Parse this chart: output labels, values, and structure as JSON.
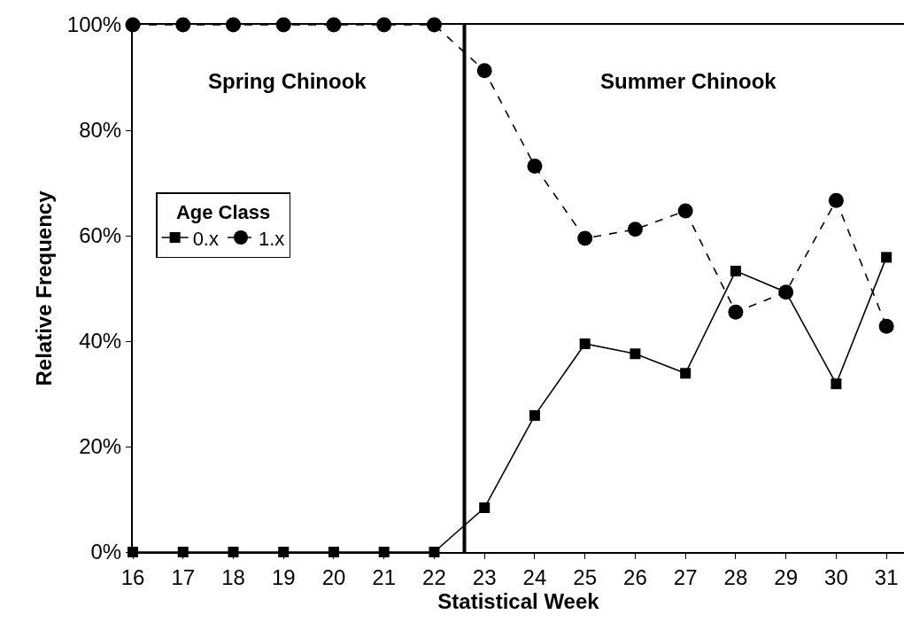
{
  "chart_data": {
    "type": "line",
    "xlabel": "Statistical Week",
    "ylabel": "Relative Frequency",
    "legend_title": "Age Class",
    "legend": "left",
    "grid": false,
    "x": [
      16,
      17,
      18,
      19,
      20,
      21,
      22,
      23,
      24,
      25,
      26,
      27,
      28,
      29,
      30,
      31
    ],
    "xlim": [
      16,
      31.35
    ],
    "xticks": [
      16,
      17,
      18,
      19,
      20,
      21,
      22,
      23,
      24,
      25,
      26,
      27,
      28,
      29,
      30,
      31
    ],
    "ylim": [
      0,
      100
    ],
    "yticks": [
      {
        "value": 0,
        "label": "0%"
      },
      {
        "value": 20,
        "label": "20%"
      },
      {
        "value": 40,
        "label": "40%"
      },
      {
        "value": 60,
        "label": "60%"
      },
      {
        "value": 80,
        "label": "80%"
      },
      {
        "value": 100,
        "label": "100%"
      }
    ],
    "series": [
      {
        "name": "0.x",
        "color": "#000000",
        "marker": "square",
        "line_style": "solid",
        "values": [
          0,
          0,
          0,
          0,
          0,
          0,
          0,
          8.4,
          25.9,
          39.5,
          37.6,
          33.9,
          53.3,
          49.3,
          31.9,
          55.9
        ]
      },
      {
        "name": "1.x",
        "color": "#000000",
        "marker": "circle",
        "line_style": "dashed",
        "values": [
          100,
          100,
          100,
          100,
          100,
          100,
          100,
          91.3,
          73.2,
          59.5,
          61.2,
          64.7,
          45.5,
          49.3,
          66.7,
          42.8
        ]
      }
    ],
    "ref_lines": [
      {
        "axis": "x",
        "value": 22.6,
        "color": "#000000",
        "line_style": "solid"
      }
    ],
    "annotations": [
      "Spring Chinook",
      "Summer Chinook"
    ]
  }
}
